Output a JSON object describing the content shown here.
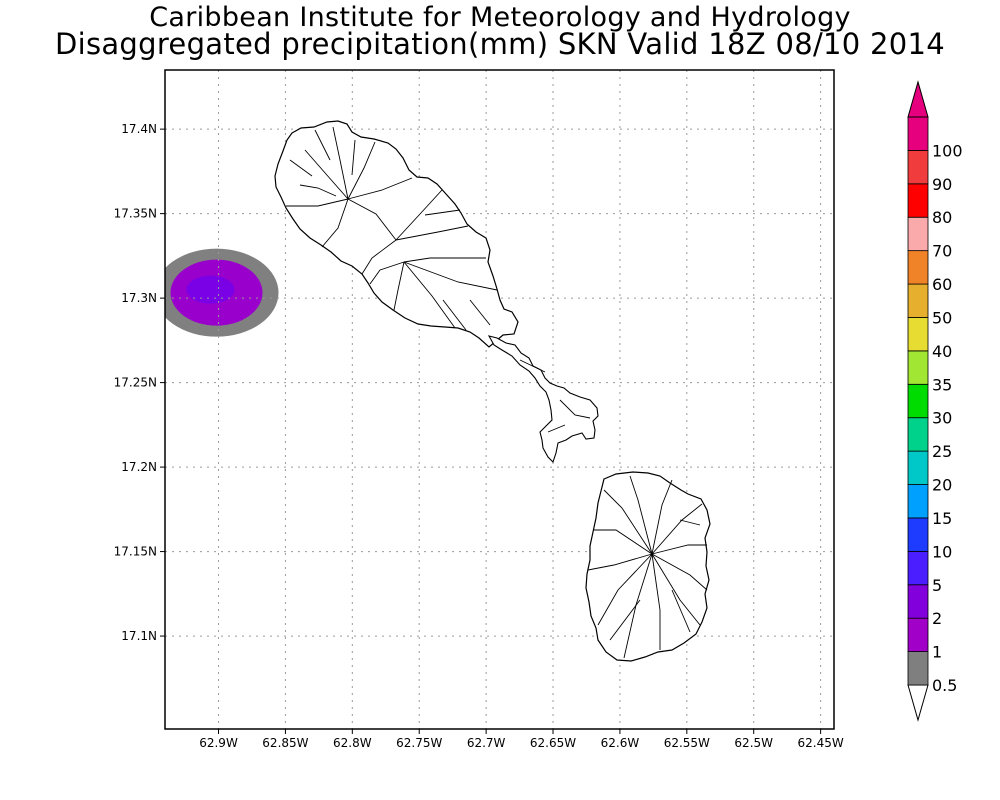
{
  "header": {
    "title_line1": "Caribbean Institute for Meteorology and Hydrology",
    "title_line2": "Disaggregated precipitation(mm) SKN Valid 18Z 08/10 2014"
  },
  "map": {
    "lon_range": [
      -62.94,
      -62.44
    ],
    "lat_range": [
      17.045,
      17.435
    ],
    "gridlines": "dotted",
    "lat_ticks": [
      {
        "value": 17.4,
        "label": "17.4N"
      },
      {
        "value": 17.35,
        "label": "17.35N"
      },
      {
        "value": 17.3,
        "label": "17.3N"
      },
      {
        "value": 17.25,
        "label": "17.25N"
      },
      {
        "value": 17.2,
        "label": "17.2N"
      },
      {
        "value": 17.15,
        "label": "17.15N"
      },
      {
        "value": 17.1,
        "label": "17.1N"
      }
    ],
    "lon_ticks": [
      {
        "value": -62.9,
        "label": "62.9W"
      },
      {
        "value": -62.85,
        "label": "62.85W"
      },
      {
        "value": -62.8,
        "label": "62.8W"
      },
      {
        "value": -62.75,
        "label": "62.75W"
      },
      {
        "value": -62.7,
        "label": "62.7W"
      },
      {
        "value": -62.65,
        "label": "62.65W"
      },
      {
        "value": -62.6,
        "label": "62.6W"
      },
      {
        "value": -62.55,
        "label": "62.55W"
      },
      {
        "value": -62.5,
        "label": "62.5W"
      },
      {
        "value": -62.45,
        "label": "62.45W"
      }
    ],
    "precip_cell": {
      "center_lon": -62.9,
      "center_lat": 17.305,
      "levels_mm": [
        0.5,
        1,
        2
      ],
      "colors": [
        "#808080",
        "#9900cc",
        "#7a00e6"
      ]
    },
    "islands": [
      "St. Kitts",
      "Nevis"
    ]
  },
  "colorbar": {
    "levels": [
      "0.5",
      "1",
      "2",
      "5",
      "10",
      "15",
      "20",
      "25",
      "30",
      "35",
      "40",
      "50",
      "60",
      "70",
      "80",
      "90",
      "100"
    ],
    "colors": [
      "#7f7f7f",
      "#a000c8",
      "#8200dc",
      "#4a1eff",
      "#1e3cff",
      "#00a0ff",
      "#00c8c8",
      "#00d28c",
      "#00dc00",
      "#a0e632",
      "#e6dc32",
      "#e6af2d",
      "#f08228",
      "#faaaaa",
      "#ff0000",
      "#f03c3c",
      "#e6007d"
    ]
  }
}
